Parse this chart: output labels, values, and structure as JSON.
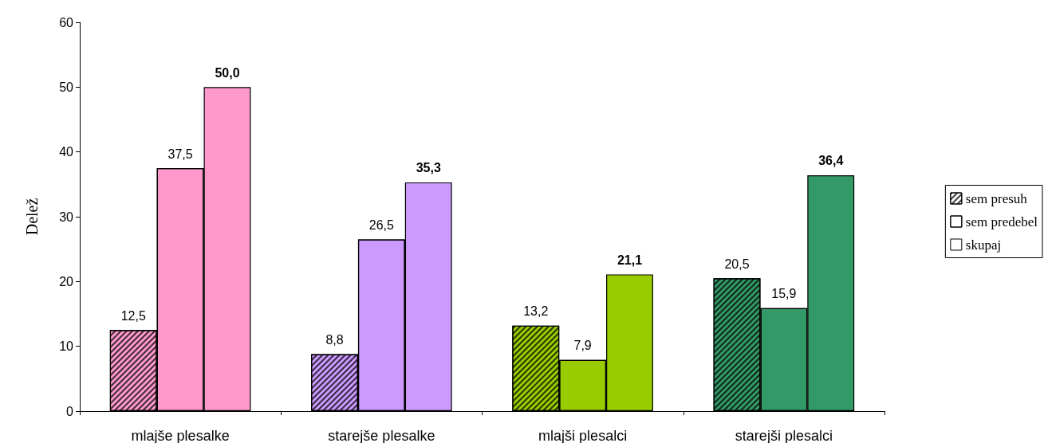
{
  "chart_data": {
    "type": "bar",
    "ylabel": "Delež",
    "categories": [
      "mlajše plesalke",
      "starejše plesalke",
      "mlajši plesalci",
      "starejši plesalci"
    ],
    "series": [
      {
        "name": "sem presuh",
        "colors": [
          "#ff99cc",
          "#cc99ff",
          "#99cc00",
          "#339966"
        ],
        "values": [
          12.5,
          8.8,
          13.2,
          20.5
        ],
        "value_labels": [
          "12,5",
          "8,8",
          "13,2",
          "20,5"
        ]
      },
      {
        "name": "sem predebel",
        "colors": [
          "#ff99cc",
          "#cc99ff",
          "#99cc00",
          "#339966"
        ],
        "values": [
          37.5,
          26.5,
          7.9,
          15.9
        ],
        "value_labels": [
          "37,5",
          "26,5",
          "7,9",
          "15,9"
        ]
      },
      {
        "name": "skupaj",
        "colors": [
          "#ff99cc",
          "#cc99ff",
          "#99cc00",
          "#339966"
        ],
        "values": [
          50.0,
          35.3,
          21.1,
          36.4
        ],
        "value_labels": [
          "50,0",
          "35,3",
          "21,1",
          "36,4"
        ]
      }
    ],
    "ylim": [
      0,
      60
    ],
    "yticks": [
      0,
      10,
      20,
      30,
      40,
      50,
      60
    ],
    "grid": false,
    "legend": "right"
  }
}
